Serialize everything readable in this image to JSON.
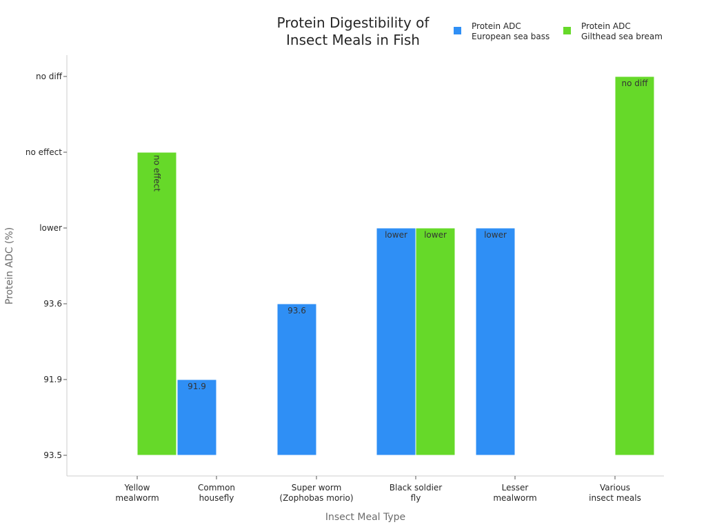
{
  "chart_data": {
    "type": "bar",
    "title": [
      "Protein Digestibility of",
      "Insect Meals in Fish"
    ],
    "xlabel": "Insect Meal Type",
    "ylabel": "Protein ADC (%)",
    "y_categories": [
      "93.5",
      "91.9",
      "93.6",
      "lower",
      "no effect",
      "no diff"
    ],
    "categories": [
      [
        "Yellow",
        "mealworm"
      ],
      [
        "Common",
        "housefly"
      ],
      [
        "Super worm",
        "(Zophobas morio)"
      ],
      [
        "Black soldier",
        "fly"
      ],
      [
        "Lesser",
        "mealworm"
      ],
      [
        "Various",
        "insect meals"
      ]
    ],
    "series": [
      {
        "name": [
          "Protein ADC",
          "European sea bass"
        ],
        "color": "#2f8ff5",
        "values": [
          null,
          "91.9",
          "93.6",
          "lower",
          "lower",
          null
        ]
      },
      {
        "name": [
          "Protein ADC",
          "Gilthead sea bream"
        ],
        "color": "#66d929",
        "values": [
          "no effect",
          null,
          null,
          "lower",
          null,
          "no diff"
        ]
      }
    ],
    "legend_position": "top-right",
    "grid": false
  }
}
